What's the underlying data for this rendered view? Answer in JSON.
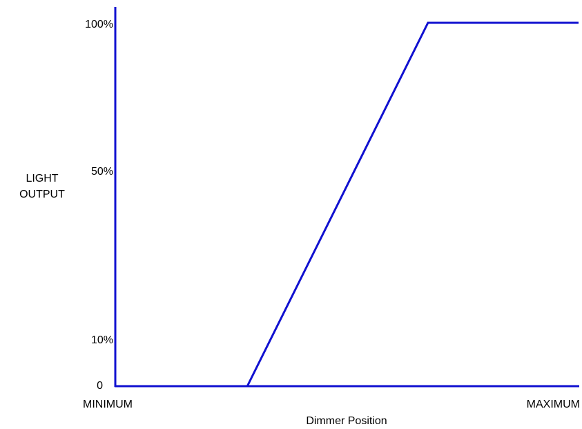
{
  "chart_data": {
    "type": "line",
    "title": "",
    "xlabel": "Dimmer Position",
    "ylabel": [
      "LIGHT",
      "OUTPUT"
    ],
    "x_tick_labels": [
      "MINIMUM",
      "MAXIMUM"
    ],
    "y_ticks": [
      {
        "value": 0,
        "label": "0"
      },
      {
        "value": 10,
        "label": "10%"
      },
      {
        "value": 50,
        "label": "50%"
      },
      {
        "value": 100,
        "label": "100%"
      }
    ],
    "xlim": [
      0,
      100
    ],
    "ylim": [
      0,
      100
    ],
    "grid": false,
    "series": [
      {
        "color": "#1010d0",
        "points": [
          {
            "x": 0,
            "y": 0
          },
          {
            "x": 28.5,
            "y": 0
          },
          {
            "x": 67.5,
            "y": 100
          },
          {
            "x": 100,
            "y": 100
          }
        ]
      }
    ],
    "colors": {
      "axis": "#1010d0",
      "line": "#1010d0",
      "text": "#000000"
    }
  }
}
